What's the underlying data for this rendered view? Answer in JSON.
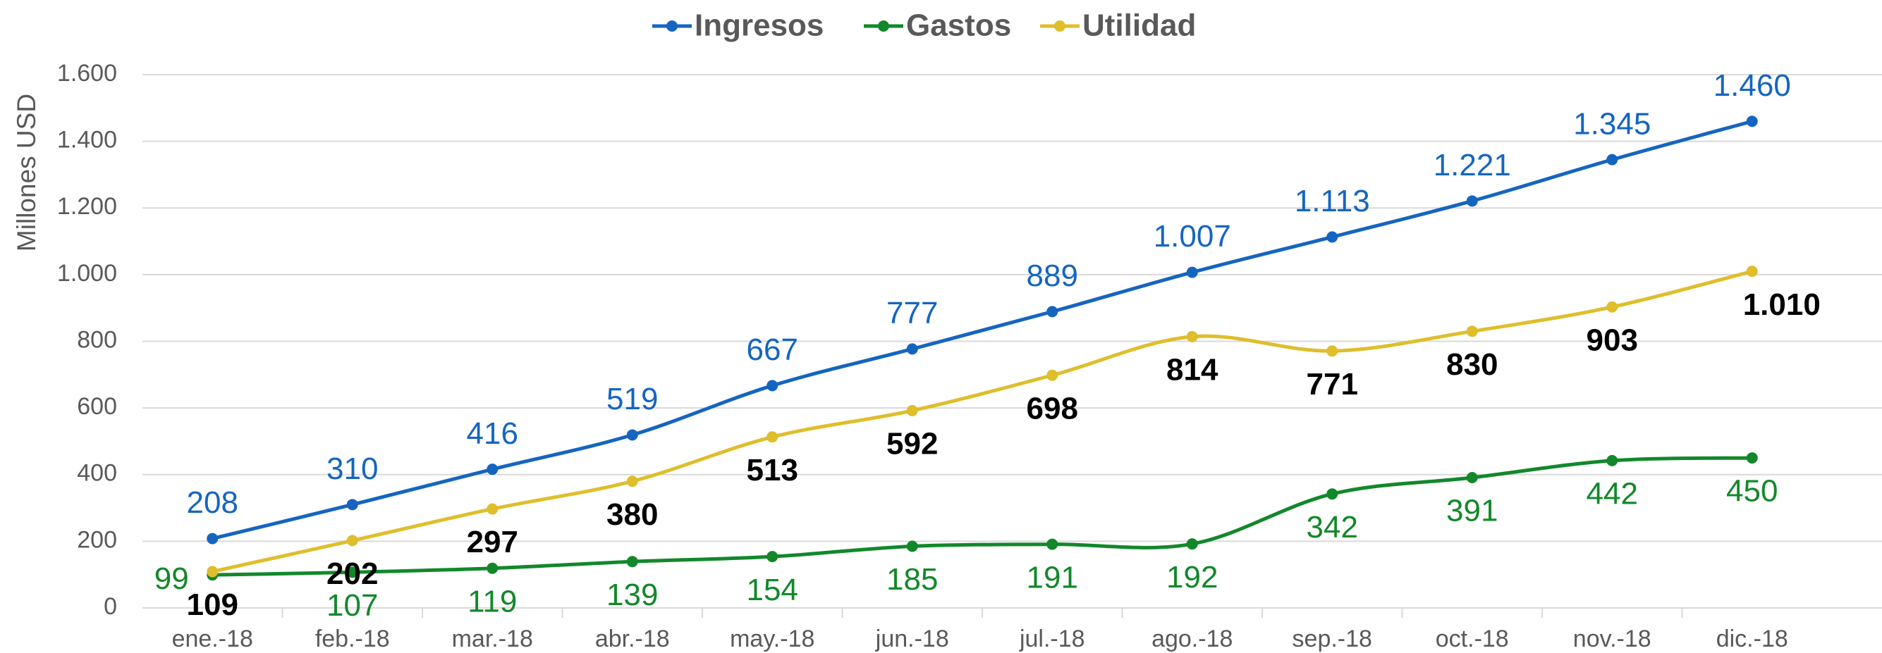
{
  "chart_data": {
    "type": "line",
    "y_label": "Millones USD",
    "categories": [
      "ene.-18",
      "feb.-18",
      "mar.-18",
      "abr.-18",
      "may.-18",
      "jun.-18",
      "jul.-18",
      "ago.-18",
      "sep.-18",
      "oct.-18",
      "nov.-18",
      "dic.-18"
    ],
    "series": [
      {
        "name": "Ingresos",
        "color": "#1565c0",
        "label_color": "#1565c0",
        "label_bold": false,
        "label_position": "above",
        "values": [
          208,
          310,
          416,
          519,
          667,
          777,
          889,
          1007,
          1113,
          1221,
          1345,
          1460
        ],
        "value_labels": [
          "208",
          "310",
          "416",
          "519",
          "667",
          "777",
          "889",
          "1.007",
          "1.113",
          "1.221",
          "1.345",
          "1.460"
        ]
      },
      {
        "name": "Gastos",
        "color": "#12882a",
        "label_color": "#12882a",
        "label_bold": false,
        "label_position": "below",
        "values": [
          99,
          107,
          119,
          139,
          154,
          185,
          191,
          192,
          342,
          391,
          442,
          450
        ]
      },
      {
        "name": "Utilidad",
        "color": "#dfbe2c",
        "label_color": "#000000",
        "label_bold": true,
        "label_position": "below",
        "values": [
          109,
          202,
          297,
          380,
          513,
          592,
          698,
          814,
          771,
          830,
          903,
          1010
        ],
        "value_labels": [
          "109",
          "202",
          "297",
          "380",
          "513",
          "592",
          "698",
          "814",
          "771",
          "830",
          "903",
          "1.010"
        ]
      }
    ],
    "ylim": [
      0,
      1600
    ],
    "yticks": [
      0,
      200,
      400,
      600,
      800,
      {
        "value": 1000,
        "label": "1.000"
      },
      {
        "value": 1200,
        "label": "1.200"
      },
      {
        "value": 1400,
        "label": "1.400"
      },
      {
        "value": 1600,
        "label": "1.600"
      }
    ],
    "grid": true,
    "legend": "top",
    "smooth": true
  }
}
